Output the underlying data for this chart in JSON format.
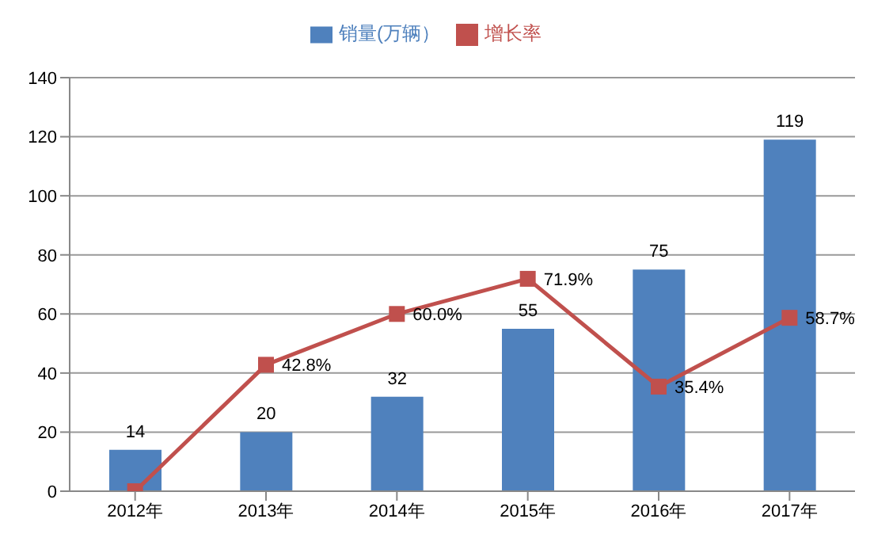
{
  "chart_data": {
    "type": "bar",
    "categories": [
      "2012年",
      "2013年",
      "2014年",
      "2015年",
      "2016年",
      "2017年"
    ],
    "series": [
      {
        "name": "销量(万辆）",
        "color": "#4f81bd",
        "values": [
          14,
          20,
          32,
          55,
          75,
          119
        ],
        "value_labels": [
          "14",
          "20",
          "32",
          "55",
          "75",
          "119"
        ]
      },
      {
        "name": "增长率",
        "type": "line",
        "color": "#c0504d",
        "values": [
          0,
          42.8,
          60.0,
          71.9,
          35.4,
          58.7
        ],
        "value_labels": [
          null,
          "42.8%",
          "60.0%",
          "71.9%",
          "35.4%",
          "58.7%"
        ]
      }
    ],
    "ylim": [
      0,
      140
    ],
    "yticks": [
      0,
      20,
      40,
      60,
      80,
      100,
      120,
      140
    ],
    "grid": "y",
    "legend": "top",
    "marker": "square"
  }
}
